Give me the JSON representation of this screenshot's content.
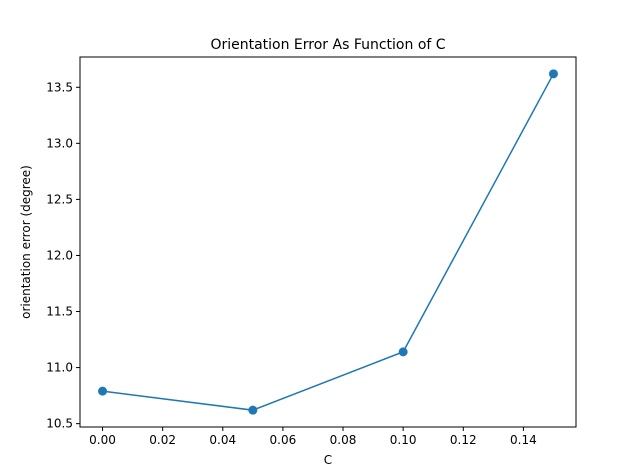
{
  "chart_data": {
    "type": "line",
    "title": "Orientation Error As Function of C",
    "xlabel": "C",
    "ylabel": "orientation error (degree)",
    "x": [
      0.0,
      0.05,
      0.1,
      0.15
    ],
    "series": [
      {
        "values": [
          10.79,
          10.62,
          11.14,
          13.62
        ],
        "color": "#1f77b4",
        "marker": "circle"
      }
    ],
    "xlim": [
      -0.0075,
      0.1575
    ],
    "ylim": [
      10.47,
      13.77
    ],
    "xticks": [
      0.0,
      0.02,
      0.04,
      0.06,
      0.08,
      0.1,
      0.12,
      0.14
    ],
    "xtick_labels": [
      "0.00",
      "0.02",
      "0.04",
      "0.06",
      "0.08",
      "0.10",
      "0.12",
      "0.14"
    ],
    "yticks": [
      10.5,
      11.0,
      11.5,
      12.0,
      12.5,
      13.0,
      13.5
    ],
    "ytick_labels": [
      "10.5",
      "11.0",
      "11.5",
      "12.0",
      "12.5",
      "13.0",
      "13.5"
    ],
    "grid": false,
    "legend": false
  }
}
